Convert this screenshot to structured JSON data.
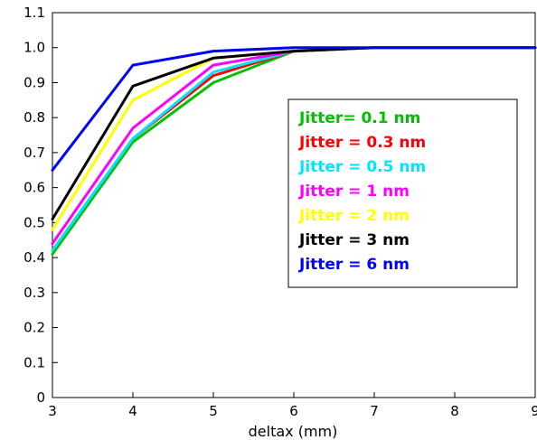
{
  "chart_data": {
    "type": "line",
    "title": "",
    "xlabel": "deltax (mm)",
    "ylabel": "",
    "xlim": [
      3,
      9
    ],
    "ylim": [
      0,
      1.1
    ],
    "grid": true,
    "legend_position": "center-right",
    "x_ticks": [
      3,
      4,
      5,
      6,
      7,
      8,
      9
    ],
    "x_tick_labels": [
      "3",
      "4",
      "5",
      "6",
      "7",
      "8",
      "9"
    ],
    "y_ticks": [
      0,
      0.1,
      0.2,
      0.3,
      0.4,
      0.5,
      0.6,
      0.7,
      0.8,
      0.9,
      1.0,
      1.1
    ],
    "y_tick_labels": [
      "0",
      "0.1",
      "0.2",
      "0.3",
      "0.4",
      "0.5",
      "0.6",
      "0.7",
      "0.8",
      "0.9",
      "1.0",
      "1.1"
    ],
    "x": [
      3,
      4,
      5,
      6,
      7,
      8,
      9
    ],
    "series": [
      {
        "name": "Jitter= 0.1 nm",
        "color": "#00c000",
        "values": [
          0.41,
          0.73,
          0.9,
          0.99,
          1.0,
          1.0,
          1.0
        ]
      },
      {
        "name": "Jitter = 0.3 nm",
        "color": "#ff0000",
        "values": [
          0.42,
          0.74,
          0.92,
          0.99,
          1.0,
          1.0,
          1.0
        ]
      },
      {
        "name": "Jitter = 0.5 nm",
        "color": "#00e5ff",
        "values": [
          0.42,
          0.74,
          0.93,
          0.99,
          1.0,
          1.0,
          1.0
        ]
      },
      {
        "name": "Jitter = 1 nm",
        "color": "#ff00ff",
        "values": [
          0.44,
          0.77,
          0.95,
          0.99,
          1.0,
          1.0,
          1.0
        ]
      },
      {
        "name": "Jitter = 2 nm",
        "color": "#ffff00",
        "values": [
          0.48,
          0.85,
          0.97,
          0.99,
          1.0,
          1.0,
          1.0
        ]
      },
      {
        "name": "Jitter = 3 nm",
        "color": "#000000",
        "values": [
          0.51,
          0.89,
          0.97,
          0.99,
          1.0,
          1.0,
          1.0
        ]
      },
      {
        "name": "Jitter = 6 nm",
        "color": "#0000ff",
        "values": [
          0.65,
          0.95,
          0.99,
          1.0,
          1.0,
          1.0,
          1.0
        ]
      }
    ]
  }
}
